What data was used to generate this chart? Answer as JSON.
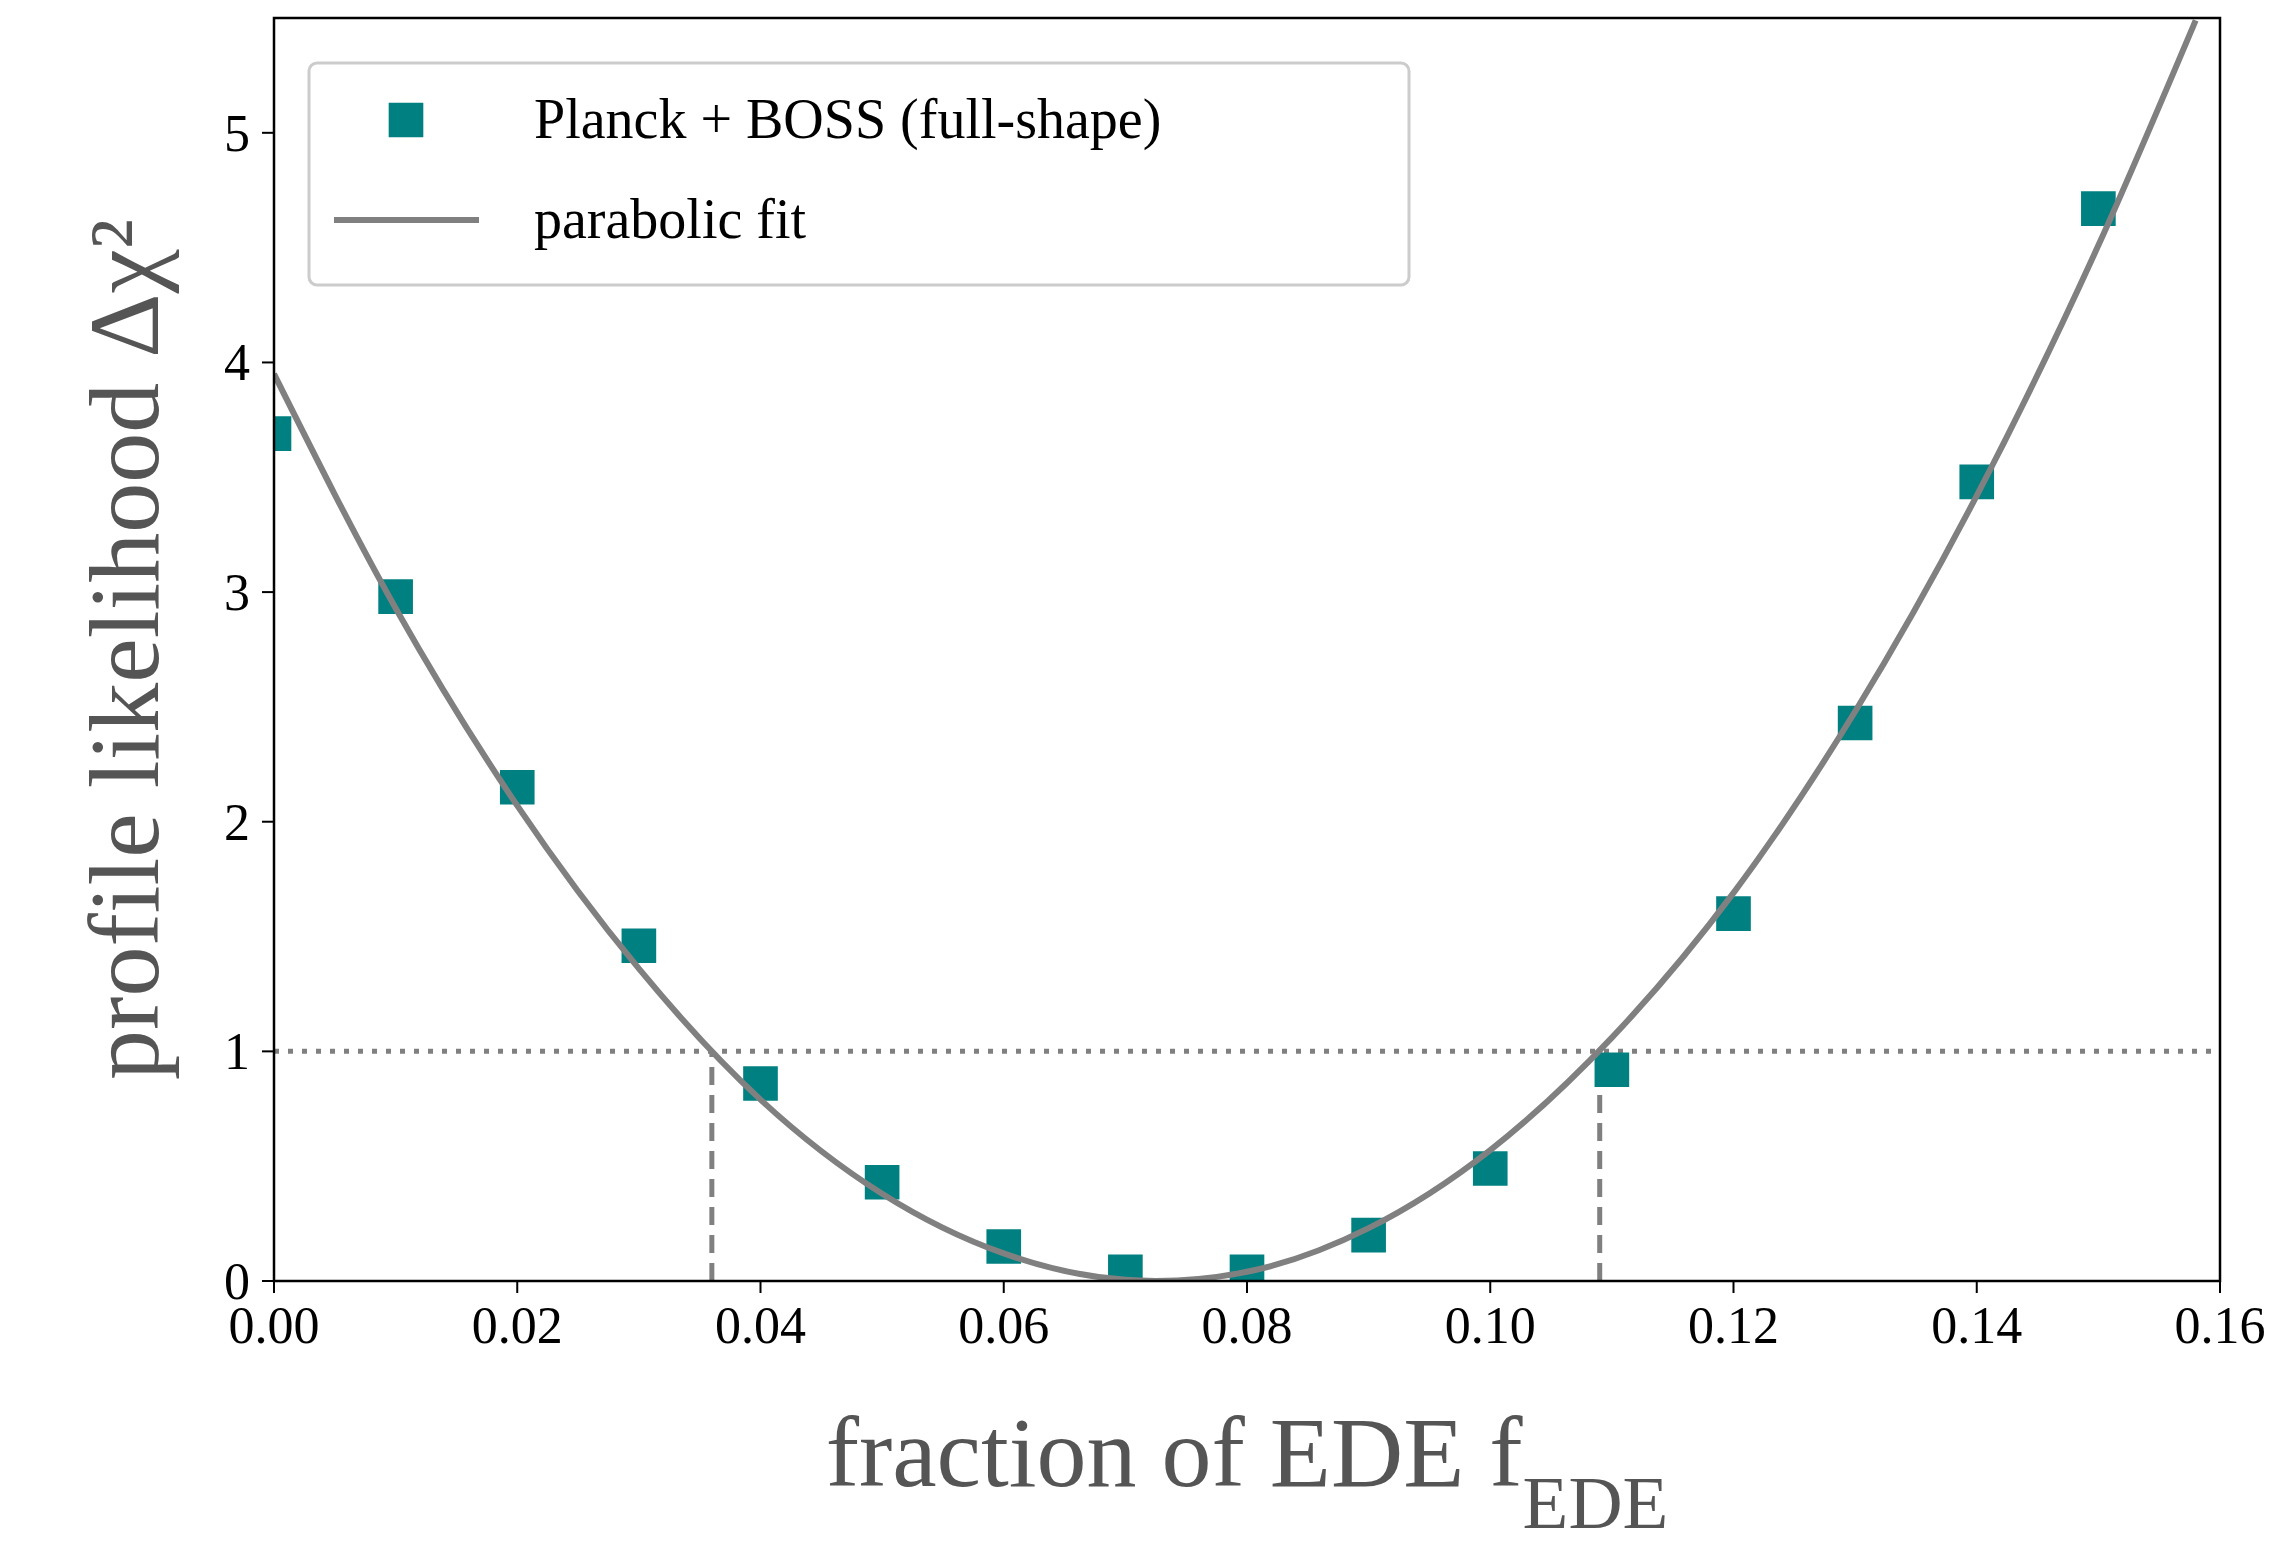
{
  "chart_data": {
    "type": "scatter",
    "xlabel": "fraction of EDE f$_{EDE}$",
    "ylabel": "profile likelihood Δχ²",
    "xlim": [
      0,
      0.16
    ],
    "ylim": [
      0,
      5.5
    ],
    "xticks": [
      {
        "value": 0,
        "label": "0.00"
      },
      {
        "value": 0.02,
        "label": "0.02"
      },
      {
        "value": 0.04,
        "label": "0.04"
      },
      {
        "value": 0.06,
        "label": "0.06"
      },
      {
        "value": 0.08,
        "label": "0.08"
      },
      {
        "value": 0.1,
        "label": "0.10"
      },
      {
        "value": 0.12,
        "label": "0.12"
      },
      {
        "value": 0.14,
        "label": "0.14"
      },
      {
        "value": 0.16,
        "label": "0.16"
      }
    ],
    "yticks": [
      0,
      1,
      2,
      3,
      4,
      5
    ],
    "legend": "top left",
    "grid": false,
    "series": [
      {
        "name": "Planck + BOSS (full-shape)",
        "marker": "square",
        "color": "#008080",
        "x": [
          0,
          0.01,
          0.02,
          0.03,
          0.04,
          0.05,
          0.06,
          0.07,
          0.08,
          0.09,
          0.1,
          0.11,
          0.12,
          0.13,
          0.14,
          0.15
        ],
        "values": [
          3.69,
          2.98,
          2.15,
          1.46,
          0.86,
          0.43,
          0.15,
          0.04,
          0.04,
          0.2,
          0.49,
          0.92,
          1.6,
          2.43,
          3.48,
          4.67
        ]
      },
      {
        "name": "parabolic fit",
        "type": "line",
        "line_style": "solid",
        "color": "#808080",
        "x": [
          0,
          0.01,
          0.02,
          0.03,
          0.04,
          0.05,
          0.06,
          0.07,
          0.0725,
          0.08,
          0.09,
          0.1,
          0.11,
          0.12,
          0.13,
          0.14,
          0.15,
          0.158
        ],
        "values": [
          3.95,
          2.93,
          2.07,
          1.36,
          0.79,
          0.38,
          0.12,
          0.005,
          0,
          0.04,
          0.23,
          0.57,
          1.06,
          1.69,
          2.48,
          3.42,
          4.51,
          5.49
        ]
      }
    ],
    "ref_lines": [
      {
        "axis": "y",
        "value": 1,
        "color": "#808080",
        "line_style": "dotted"
      },
      {
        "axis": "x",
        "value": 0.036,
        "color": "#808080",
        "line_style": "dashed"
      },
      {
        "axis": "x",
        "value": 0.109,
        "color": "#808080",
        "line_style": "dashed"
      }
    ]
  }
}
